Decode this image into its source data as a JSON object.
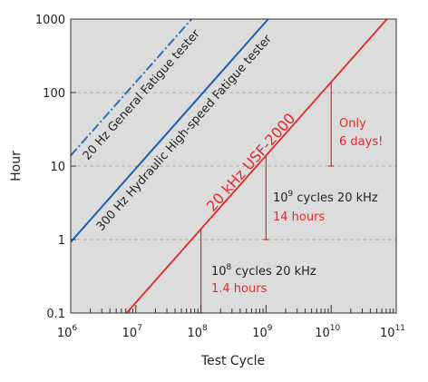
{
  "chart_data": {
    "type": "line",
    "xlabel": "Test Cycle",
    "ylabel": "Hour",
    "xscale": "log",
    "yscale": "log",
    "xlim": [
      1000000,
      100000000000
    ],
    "ylim": [
      0.1,
      1000
    ],
    "grid": "horizontal dashed",
    "x_ticks": [
      {
        "value": 1000000,
        "base": "10",
        "exp": "6"
      },
      {
        "value": 10000000,
        "base": "10",
        "exp": "7"
      },
      {
        "value": 100000000,
        "base": "10",
        "exp": "8"
      },
      {
        "value": 1000000000,
        "base": "10",
        "exp": "9"
      },
      {
        "value": 10000000000,
        "base": "10",
        "exp": "10"
      },
      {
        "value": 100000000000,
        "base": "10",
        "exp": "11"
      }
    ],
    "y_ticks": [
      {
        "value": 0.1,
        "label": "0.1"
      },
      {
        "value": 1,
        "label": "1"
      },
      {
        "value": 10,
        "label": "10"
      },
      {
        "value": 100,
        "label": "100"
      },
      {
        "value": 1000,
        "label": "1000"
      }
    ],
    "series": [
      {
        "name": "20 Hz General Fatigue tester",
        "color": "#2e6fb7",
        "dash": "dashdot",
        "x": [
          1000000,
          72000000
        ],
        "y": [
          13.9,
          1000
        ]
      },
      {
        "name": "300 Hz Hydraulic High-speed Fatigue tester",
        "color": "#1a5fae",
        "dash": "solid",
        "x": [
          1000000,
          1080000000
        ],
        "y": [
          0.926,
          1000
        ]
      },
      {
        "name": "20 kHz USF-2000",
        "color": "#e02a2a",
        "dash": "solid",
        "x": [
          7200000,
          72000000000
        ],
        "y": [
          0.1,
          1000
        ]
      }
    ],
    "annotations": [
      {
        "x": 100000000,
        "y_low": 0.1,
        "y_high": 1.39,
        "line1": "10",
        "line1_exp": "8",
        "line1_rest": " cycles 20 kHz",
        "line2": "1.4 hours"
      },
      {
        "x": 1000000000,
        "y_low": 1.0,
        "y_high": 13.9,
        "line1": "10",
        "line1_exp": "9",
        "line1_rest": " cycles 20 kHz",
        "line2": "14 hours"
      },
      {
        "x": 10000000000,
        "y_low": 10,
        "y_high": 139,
        "line1": "Only",
        "line2": "6 days!"
      }
    ],
    "colors": {
      "plot_bg": "#dcdcdc",
      "grid": "#aaaaaa",
      "annotation": "#e02a2a",
      "text": "#222222"
    }
  }
}
